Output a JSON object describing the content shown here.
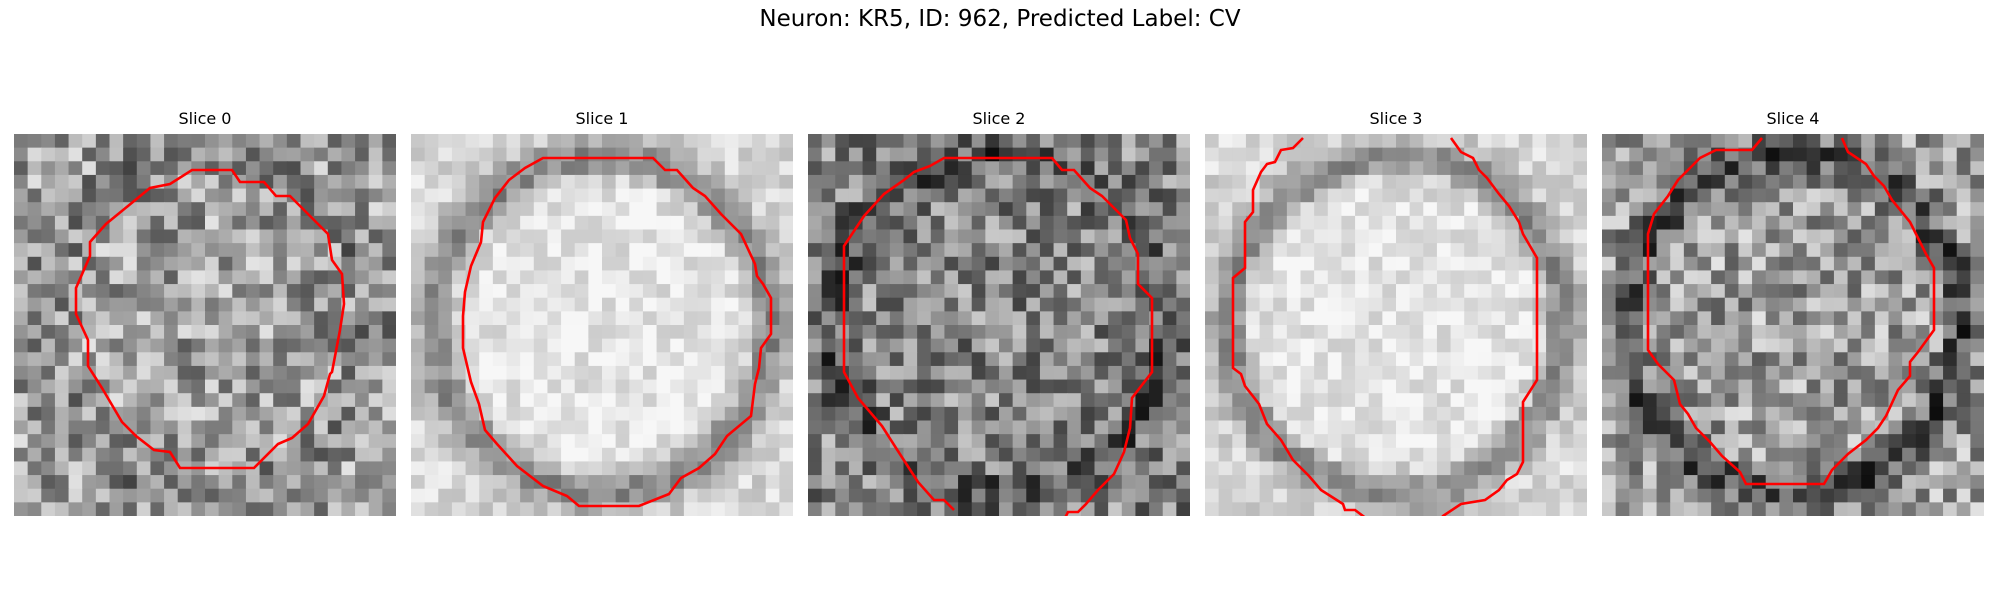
{
  "figure": {
    "title": "Neuron: KR5, ID: 962, Predicted Label: CV",
    "contour_color": "#ff0000",
    "image_style": "grayscale noisy microscopy crop with red boundary contour"
  },
  "panels": [
    {
      "title": "Slice 0",
      "seed": 11,
      "texture": "noisy",
      "brightness": "medium",
      "ring": "faint"
    },
    {
      "title": "Slice 1",
      "seed": 23,
      "texture": "smooth",
      "brightness": "bright",
      "ring": "dark"
    },
    {
      "title": "Slice 2",
      "seed": 37,
      "texture": "noisy",
      "brightness": "medium-dark",
      "ring": "medium"
    },
    {
      "title": "Slice 3",
      "seed": 41,
      "texture": "smooth",
      "brightness": "bright",
      "ring": "dark"
    },
    {
      "title": "Slice 4",
      "seed": 53,
      "texture": "noisy",
      "brightness": "medium",
      "ring": "dark"
    }
  ]
}
